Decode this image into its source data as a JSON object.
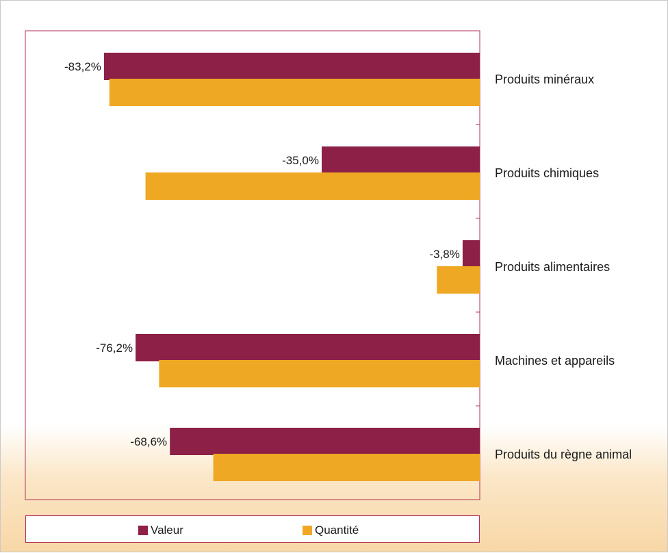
{
  "chart_data": {
    "type": "bar",
    "orientation": "horizontal",
    "categories": [
      "Produits minéraux",
      "Produits chimiques",
      "Produits alimentaires",
      "Machines et appareils",
      "Produits du règne animal"
    ],
    "series": [
      {
        "name": "Valeur",
        "values": [
          -83.2,
          -35.0,
          -3.8,
          -76.2,
          -68.6
        ],
        "labels": [
          "-83,2%",
          "-35,0%",
          "-3,8%",
          "-76,2%",
          "-68,6%"
        ]
      },
      {
        "name": "Quantité",
        "values": [
          -82.0,
          -74.0,
          -9.5,
          -71.0,
          -59.0
        ]
      }
    ],
    "xlim": [
      -100,
      0
    ],
    "legend_position": "bottom",
    "grid": false,
    "colors": {
      "valeur": "#8c2047",
      "quantite": "#efa823",
      "axis": "#b0325a"
    }
  }
}
